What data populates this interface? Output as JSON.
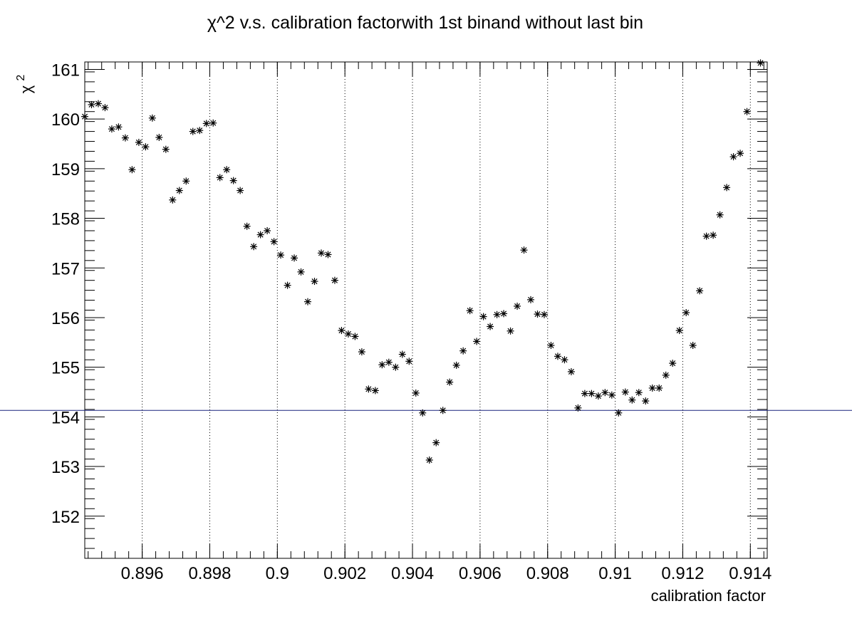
{
  "chart_data": {
    "type": "scatter",
    "title": "χ^2 v.s. calibration factorwith 1st binand without last bin",
    "xlabel": "calibration factor",
    "ylabel": "χ",
    "ylabel_superscript": "2",
    "xlim": [
      0.8943,
      0.9145
    ],
    "ylim": [
      151.15,
      161.15
    ],
    "x_ticks": [
      "0.896",
      "0.898",
      "0.9",
      "0.902",
      "0.904",
      "0.906",
      "0.908",
      "0.91",
      "0.912",
      "0.914"
    ],
    "x_tick_values": [
      0.896,
      0.898,
      0.9,
      0.902,
      0.904,
      0.906,
      0.908,
      0.91,
      0.912,
      0.914
    ],
    "y_ticks": [
      "152",
      "153",
      "154",
      "155",
      "156",
      "157",
      "158",
      "159",
      "160",
      "161"
    ],
    "y_tick_values": [
      152,
      153,
      154,
      155,
      156,
      157,
      158,
      159,
      160,
      161
    ],
    "grid": "x dotted",
    "marker": "asterisk",
    "reference_line": {
      "y": 154.13,
      "color": "#1a237e"
    },
    "series": [
      {
        "points": [
          [
            0.8943,
            160.05
          ],
          [
            0.8945,
            160.29
          ],
          [
            0.8947,
            160.31
          ],
          [
            0.8949,
            160.23
          ],
          [
            0.8951,
            159.8
          ],
          [
            0.8953,
            159.84
          ],
          [
            0.8955,
            159.62
          ],
          [
            0.8957,
            158.98
          ],
          [
            0.8959,
            159.53
          ],
          [
            0.8961,
            159.44
          ],
          [
            0.8963,
            160.02
          ],
          [
            0.8965,
            159.63
          ],
          [
            0.8967,
            159.39
          ],
          [
            0.8969,
            158.37
          ],
          [
            0.8971,
            158.56
          ],
          [
            0.8973,
            158.75
          ],
          [
            0.8975,
            159.75
          ],
          [
            0.8977,
            159.77
          ],
          [
            0.8979,
            159.91
          ],
          [
            0.8981,
            159.92
          ],
          [
            0.8983,
            158.82
          ],
          [
            0.8985,
            158.98
          ],
          [
            0.8987,
            158.76
          ],
          [
            0.8989,
            158.56
          ],
          [
            0.8991,
            157.84
          ],
          [
            0.8993,
            157.43
          ],
          [
            0.8995,
            157.67
          ],
          [
            0.8997,
            157.75
          ],
          [
            0.8999,
            157.53
          ],
          [
            0.9001,
            157.26
          ],
          [
            0.9003,
            156.65
          ],
          [
            0.9005,
            157.2
          ],
          [
            0.9007,
            156.92
          ],
          [
            0.9009,
            156.32
          ],
          [
            0.9011,
            156.73
          ],
          [
            0.9013,
            157.3
          ],
          [
            0.9015,
            157.27
          ],
          [
            0.9017,
            156.75
          ],
          [
            0.9019,
            155.74
          ],
          [
            0.9021,
            155.67
          ],
          [
            0.9023,
            155.62
          ],
          [
            0.9025,
            155.31
          ],
          [
            0.9027,
            154.56
          ],
          [
            0.9029,
            154.53
          ],
          [
            0.9031,
            155.05
          ],
          [
            0.9033,
            155.1
          ],
          [
            0.9035,
            155.0
          ],
          [
            0.9037,
            155.26
          ],
          [
            0.9039,
            155.12
          ],
          [
            0.9041,
            154.48
          ],
          [
            0.9043,
            154.08
          ],
          [
            0.9045,
            153.13
          ],
          [
            0.9047,
            153.48
          ],
          [
            0.9049,
            154.13
          ],
          [
            0.9051,
            154.7
          ],
          [
            0.9053,
            155.04
          ],
          [
            0.9055,
            155.33
          ],
          [
            0.9057,
            156.14
          ],
          [
            0.9059,
            155.52
          ],
          [
            0.9061,
            156.02
          ],
          [
            0.9063,
            155.82
          ],
          [
            0.9065,
            156.06
          ],
          [
            0.9067,
            156.08
          ],
          [
            0.9069,
            155.73
          ],
          [
            0.9071,
            156.23
          ],
          [
            0.9073,
            157.36
          ],
          [
            0.9075,
            156.36
          ],
          [
            0.9077,
            156.07
          ],
          [
            0.9079,
            156.06
          ],
          [
            0.9081,
            155.44
          ],
          [
            0.9083,
            155.22
          ],
          [
            0.9085,
            155.15
          ],
          [
            0.9087,
            154.91
          ],
          [
            0.9089,
            154.18
          ],
          [
            0.9091,
            154.47
          ],
          [
            0.9093,
            154.47
          ],
          [
            0.9095,
            154.42
          ],
          [
            0.9097,
            154.49
          ],
          [
            0.9099,
            154.44
          ],
          [
            0.9101,
            154.08
          ],
          [
            0.9103,
            154.5
          ],
          [
            0.9105,
            154.34
          ],
          [
            0.9107,
            154.49
          ],
          [
            0.9109,
            154.32
          ],
          [
            0.9111,
            154.58
          ],
          [
            0.9113,
            154.58
          ],
          [
            0.9115,
            154.84
          ],
          [
            0.9117,
            155.08
          ],
          [
            0.9119,
            155.74
          ],
          [
            0.9121,
            156.1
          ],
          [
            0.9123,
            155.44
          ],
          [
            0.9125,
            156.54
          ],
          [
            0.9127,
            157.64
          ],
          [
            0.9129,
            157.66
          ],
          [
            0.9131,
            158.07
          ],
          [
            0.9133,
            158.62
          ],
          [
            0.9135,
            159.24
          ],
          [
            0.9137,
            159.31
          ],
          [
            0.9139,
            160.15
          ],
          [
            0.9143,
            161.13
          ]
        ]
      }
    ]
  }
}
